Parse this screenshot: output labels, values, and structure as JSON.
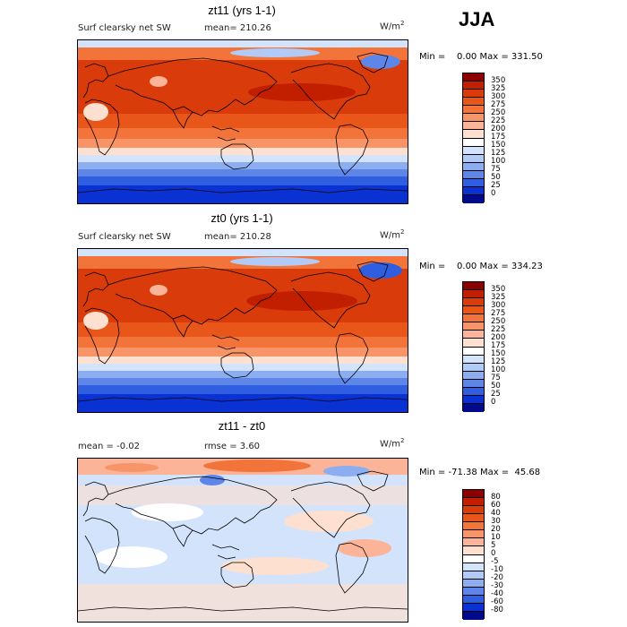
{
  "season": "JJA",
  "panels": [
    {
      "title": "zt11 (yrs 1-1)",
      "left_label": "Surf clearsky net SW",
      "mid_label": "mean= 210.26",
      "units": "W/m",
      "units_sup": "2",
      "min_text": "Min =",
      "min_value": "0.00",
      "max_text": "Max =",
      "max_value": "331.50",
      "field_type": "absolute"
    },
    {
      "title": "zt0 (yrs 1-1)",
      "left_label": "Surf clearsky net SW",
      "mid_label": "mean= 210.28",
      "units": "W/m",
      "units_sup": "2",
      "min_text": "Min =",
      "min_value": "0.00",
      "max_text": "Max =",
      "max_value": "334.23",
      "field_type": "absolute"
    },
    {
      "title": "zt11 - zt0",
      "left_label": "mean =   -0.02",
      "mid_label": "rmse =    3.60",
      "units": "W/m",
      "units_sup": "2",
      "min_text": "Min =",
      "min_value": "-71.38",
      "max_text": "Max =",
      "max_value": "45.68",
      "field_type": "difference"
    }
  ],
  "colorbars": {
    "absolute": {
      "levels": [
        "350",
        "325",
        "300",
        "275",
        "250",
        "225",
        "200",
        "175",
        "150",
        "125",
        "100",
        "75",
        "50",
        "25",
        "0"
      ],
      "colors": [
        "#8b0000",
        "#c21f00",
        "#d93b0a",
        "#e8561a",
        "#f2743a",
        "#f79468",
        "#fbb497",
        "#fde0cf",
        "#ffffff",
        "#d3e3fb",
        "#b2cbf6",
        "#8cadf0",
        "#5d86e8",
        "#2f5fe0",
        "#0a32d2",
        "#000a8c"
      ]
    },
    "difference": {
      "levels": [
        "80",
        "60",
        "40",
        "30",
        "20",
        "10",
        "5",
        "0",
        "-5",
        "-10",
        "-20",
        "-30",
        "-40",
        "-60",
        "-80"
      ],
      "colors": [
        "#8b0000",
        "#c21f00",
        "#d93b0a",
        "#e8561a",
        "#f2743a",
        "#f79468",
        "#fbb497",
        "#fde0cf",
        "#ffffff",
        "#d3e3fb",
        "#b2cbf6",
        "#8cadf0",
        "#5d86e8",
        "#2f5fe0",
        "#0a32d2",
        "#000a8c"
      ]
    }
  }
}
